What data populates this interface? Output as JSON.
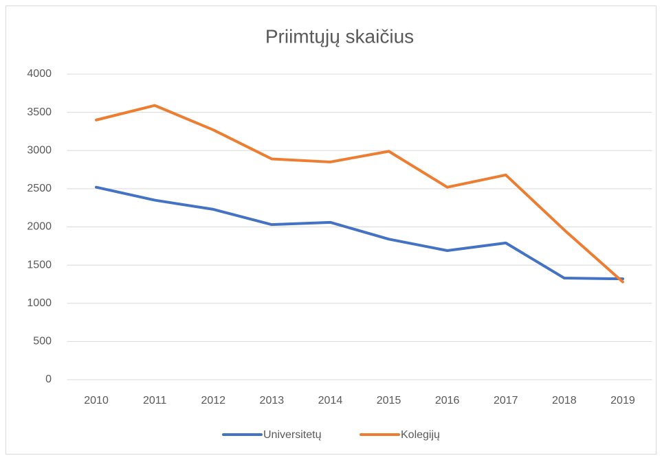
{
  "chart_data": {
    "type": "line",
    "title": "Priimtųjų skaičius",
    "categories": [
      "2010",
      "2011",
      "2012",
      "2013",
      "2014",
      "2015",
      "2016",
      "2017",
      "2018",
      "2019"
    ],
    "series": [
      {
        "name": "Universitetų",
        "color": "#4472c4",
        "values": [
          2520,
          2350,
          2230,
          2030,
          2060,
          1840,
          1690,
          1790,
          1330,
          1320
        ]
      },
      {
        "name": "Kolegijų",
        "color": "#ed7d31",
        "values": [
          3400,
          3590,
          3270,
          2890,
          2850,
          2990,
          2520,
          2680,
          1960,
          1280
        ]
      }
    ],
    "ylim": [
      0,
      4000
    ],
    "yticks": [
      0,
      500,
      1000,
      1500,
      2000,
      2500,
      3000,
      3500,
      4000
    ],
    "grid": true,
    "legend": "bottom"
  }
}
